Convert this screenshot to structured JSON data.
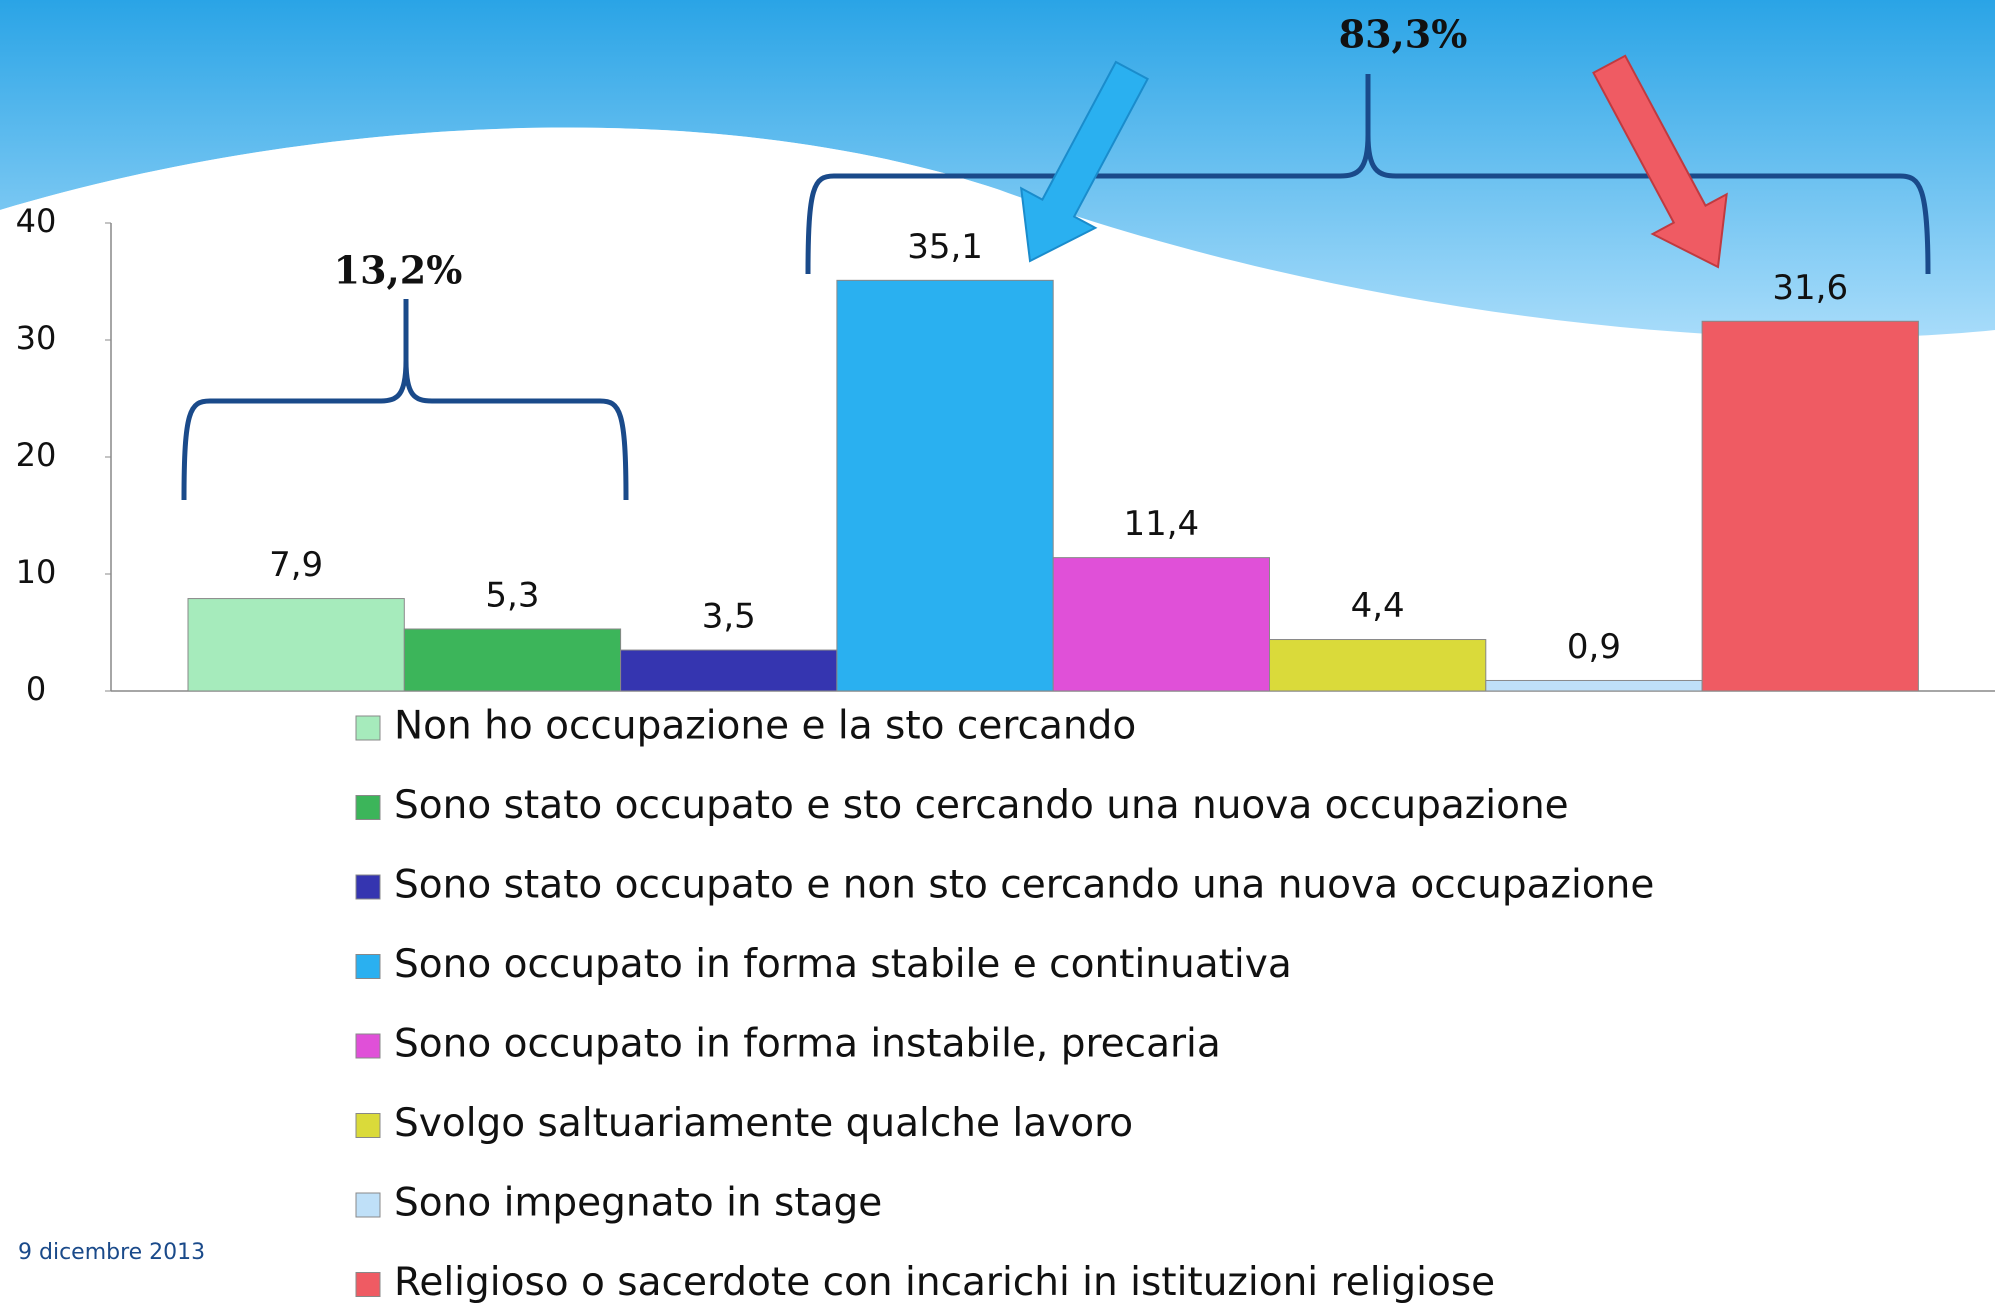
{
  "chart_data": {
    "type": "bar",
    "categories": [
      "Non ho occupazione e la sto cercando",
      "Sono stato occupato e sto cercando una nuova occupazione",
      "Sono stato occupato e non sto cercando una nuova occupazione",
      "Sono occupato in forma stabile e continuativa",
      "Sono occupato in forma instabile, precaria",
      "Svolgo saltuariamente qualche lavoro",
      "Sono impegnato in stage",
      "Religioso o sacerdote con incarichi in istituzioni religiose"
    ],
    "values": [
      7.9,
      5.3,
      3.5,
      35.1,
      11.4,
      4.4,
      0.9,
      31.6
    ],
    "value_labels": [
      "7,9",
      "5,3",
      "3,5",
      "35,1",
      "11,4",
      "4,4",
      "0,9",
      "31,6"
    ],
    "colors": [
      "#a6ebbc",
      "#3cb55a",
      "#3535b0",
      "#2ab0f0",
      "#e050d8",
      "#dada3a",
      "#bfe0f8",
      "#ef5b63"
    ],
    "ylim": [
      0,
      40
    ],
    "yticks": [
      0,
      10,
      20,
      30,
      40
    ],
    "annotations": [
      "13,2%",
      "83,3%"
    ],
    "footer": "9 dicembre 2013"
  }
}
